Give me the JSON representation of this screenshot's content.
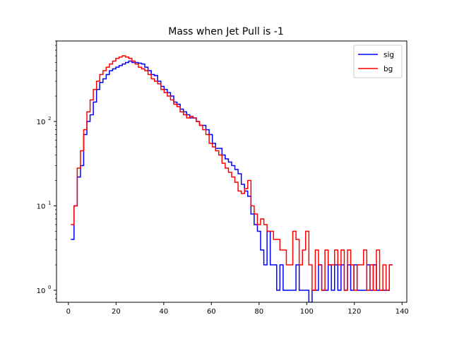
{
  "chart_data": {
    "type": "step",
    "title": "Mass when Jet Pull is -1",
    "xlabel": "",
    "ylabel": "",
    "y_scale": "log",
    "xlim": [
      -5,
      142
    ],
    "ylim": [
      0.72,
      900
    ],
    "x_ticks": [
      "0",
      "20",
      "40",
      "60",
      "80",
      "100",
      "120",
      "140"
    ],
    "y_ticks": [
      "10^0",
      "10^1",
      "10^2"
    ],
    "legend_position": "top-right",
    "series": [
      {
        "name": "sig",
        "color": "#0000ff",
        "bin_start": 1,
        "bin_width": 1.35,
        "values": [
          4,
          10,
          22,
          30,
          70,
          100,
          120,
          170,
          240,
          290,
          320,
          360,
          400,
          420,
          440,
          460,
          480,
          500,
          520,
          500,
          500,
          490,
          480,
          440,
          400,
          360,
          350,
          300,
          260,
          240,
          220,
          200,
          170,
          160,
          140,
          130,
          120,
          110,
          110,
          100,
          90,
          90,
          80,
          70,
          55,
          48,
          48,
          40,
          36,
          33,
          30,
          27,
          24,
          18,
          15,
          13,
          8,
          6,
          5,
          3,
          2,
          5,
          2,
          2,
          1,
          2,
          1,
          1,
          1,
          1,
          2,
          1,
          1,
          1,
          0,
          1,
          1,
          2,
          1,
          1,
          2,
          1,
          2,
          1,
          2,
          1,
          2,
          1,
          2,
          1,
          1,
          1,
          2,
          1,
          2,
          1,
          1,
          1,
          1,
          2
        ]
      },
      {
        "name": "bg",
        "color": "#ff0000",
        "bin_start": 1,
        "bin_width": 1.35,
        "values": [
          6,
          10,
          28,
          45,
          80,
          130,
          180,
          240,
          300,
          360,
          400,
          440,
          480,
          520,
          560,
          580,
          600,
          580,
          560,
          520,
          480,
          440,
          420,
          400,
          360,
          320,
          300,
          280,
          240,
          220,
          200,
          180,
          160,
          150,
          130,
          120,
          110,
          115,
          110,
          100,
          90,
          80,
          70,
          55,
          50,
          45,
          40,
          32,
          28,
          25,
          22,
          19,
          15,
          14,
          16,
          20,
          10,
          8,
          6,
          7,
          6,
          5,
          5,
          4,
          4,
          3,
          3,
          2,
          2,
          5,
          4,
          2,
          3,
          5,
          2,
          1,
          3,
          2,
          1,
          3,
          2,
          2,
          3,
          2,
          3,
          1,
          3,
          2,
          1,
          2,
          2,
          3,
          1,
          2,
          1,
          3,
          1,
          2,
          1,
          2
        ]
      }
    ]
  }
}
